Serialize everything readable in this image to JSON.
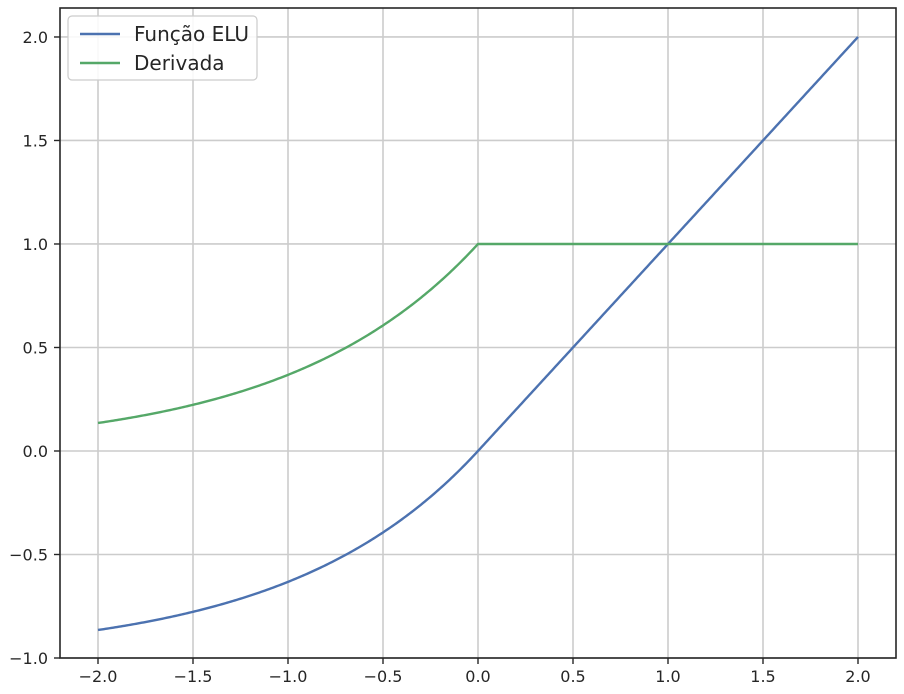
{
  "chart_data": {
    "type": "line",
    "title": "",
    "xlabel": "",
    "ylabel": "",
    "xlim": [
      -2.2,
      2.2
    ],
    "ylim": [
      -1.0,
      2.14
    ],
    "xticks": [
      -2.0,
      -1.5,
      -1.0,
      -0.5,
      0.0,
      0.5,
      1.0,
      1.5,
      2.0
    ],
    "yticks": [
      -1.0,
      -0.5,
      0.0,
      0.5,
      1.0,
      1.5,
      2.0
    ],
    "xtick_labels": [
      "−2.0",
      "−1.5",
      "−1.0",
      "−0.5",
      "0.0",
      "0.5",
      "1.0",
      "1.5",
      "2.0"
    ],
    "ytick_labels": [
      "−1.0",
      "−0.5",
      "0.0",
      "0.5",
      "1.0",
      "1.5",
      "2.0"
    ],
    "grid": true,
    "legend_position": "top-left",
    "series": [
      {
        "name": "Função ELU",
        "color": "#4c72b0",
        "x": [
          -2.0,
          -1.75,
          -1.5,
          -1.25,
          -1.0,
          -0.75,
          -0.5,
          -0.25,
          0.0,
          0.5,
          1.0,
          1.5,
          2.0
        ],
        "y": [
          -0.865,
          -0.826,
          -0.777,
          -0.713,
          -0.632,
          -0.528,
          -0.393,
          -0.221,
          0.0,
          0.5,
          1.0,
          1.5,
          2.0
        ]
      },
      {
        "name": "Derivada",
        "color": "#55a868",
        "x": [
          -2.0,
          -1.75,
          -1.5,
          -1.25,
          -1.0,
          -0.75,
          -0.5,
          -0.25,
          0.0,
          0.5,
          1.0,
          1.5,
          2.0
        ],
        "y": [
          0.135,
          0.174,
          0.223,
          0.287,
          0.368,
          0.472,
          0.607,
          0.779,
          1.0,
          1.0,
          1.0,
          1.0,
          1.0
        ]
      }
    ]
  }
}
